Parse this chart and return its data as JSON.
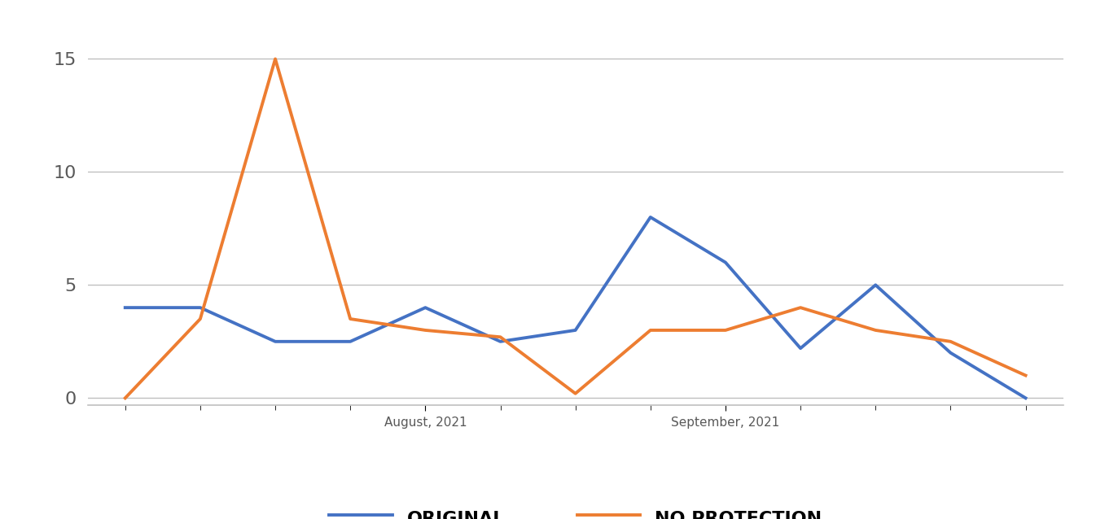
{
  "original": [
    4,
    4,
    2.5,
    2.5,
    4,
    2.5,
    3,
    8,
    6,
    2.2,
    5,
    2,
    0
  ],
  "no_protection": [
    0,
    3.5,
    15,
    3.5,
    3,
    2.7,
    0.2,
    3,
    3,
    4,
    3,
    2.5,
    1
  ],
  "named_labels": {
    "4": "August, 2021",
    "8": "September, 2021"
  },
  "legend_original": "ORIGINAL",
  "legend_no_protection": "NO PROTECTION",
  "original_color": "#4472C4",
  "no_protection_color": "#ED7D31",
  "ylim": [
    -0.3,
    16
  ],
  "yticks": [
    0,
    5,
    10,
    15
  ],
  "background_color": "#FFFFFF",
  "grid_color": "#C0C0C0",
  "line_width": 2.8
}
